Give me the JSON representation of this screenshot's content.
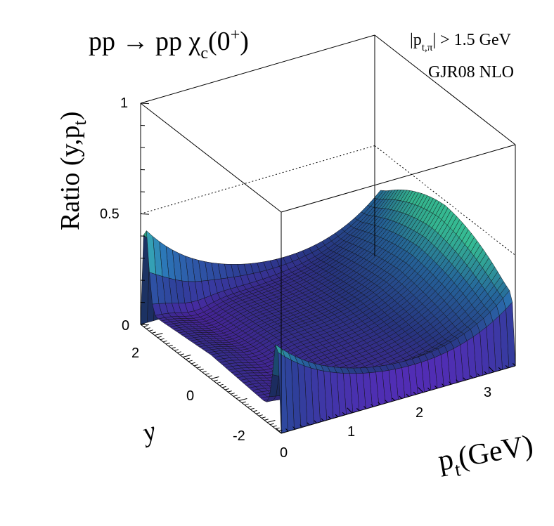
{
  "chart_data": {
    "type": "surface",
    "title": {
      "base": "pp → pp χ",
      "sub": "c",
      "after": "(0",
      "sup": "+",
      "end": ")"
    },
    "annotation": {
      "line1_prefix": "|p",
      "line1_sub": "t,π",
      "line1_suffix": "| > 1.5 GeV",
      "line2": "GJR08 NLO"
    },
    "z_axis": {
      "title_base": "Ratio (y,p",
      "title_sub": "t",
      "title_end": ")",
      "range": [
        0,
        1
      ],
      "ticks": [
        "0",
        "0.5",
        "1"
      ]
    },
    "x_axis": {
      "title_base": "p",
      "title_sub": "t",
      "title_end": "(GeV)",
      "range": [
        0,
        3.3
      ],
      "ticks": [
        "0",
        "1",
        "2",
        "3"
      ]
    },
    "y_axis": {
      "title": "y",
      "range": [
        -2.5,
        2.5
      ],
      "ticks": [
        "-2",
        "0",
        "2"
      ]
    },
    "colors": {
      "low": "#6a20c8",
      "mid": "#2f3f9a",
      "high": "#40e0b0",
      "frame": "#000000"
    },
    "grid": false,
    "description_values": {
      "edge_peak_y_high": 0.4,
      "edge_peak_y_low": 0.32,
      "center_plateau": 0.08,
      "high_pt_value": 0.5
    }
  }
}
